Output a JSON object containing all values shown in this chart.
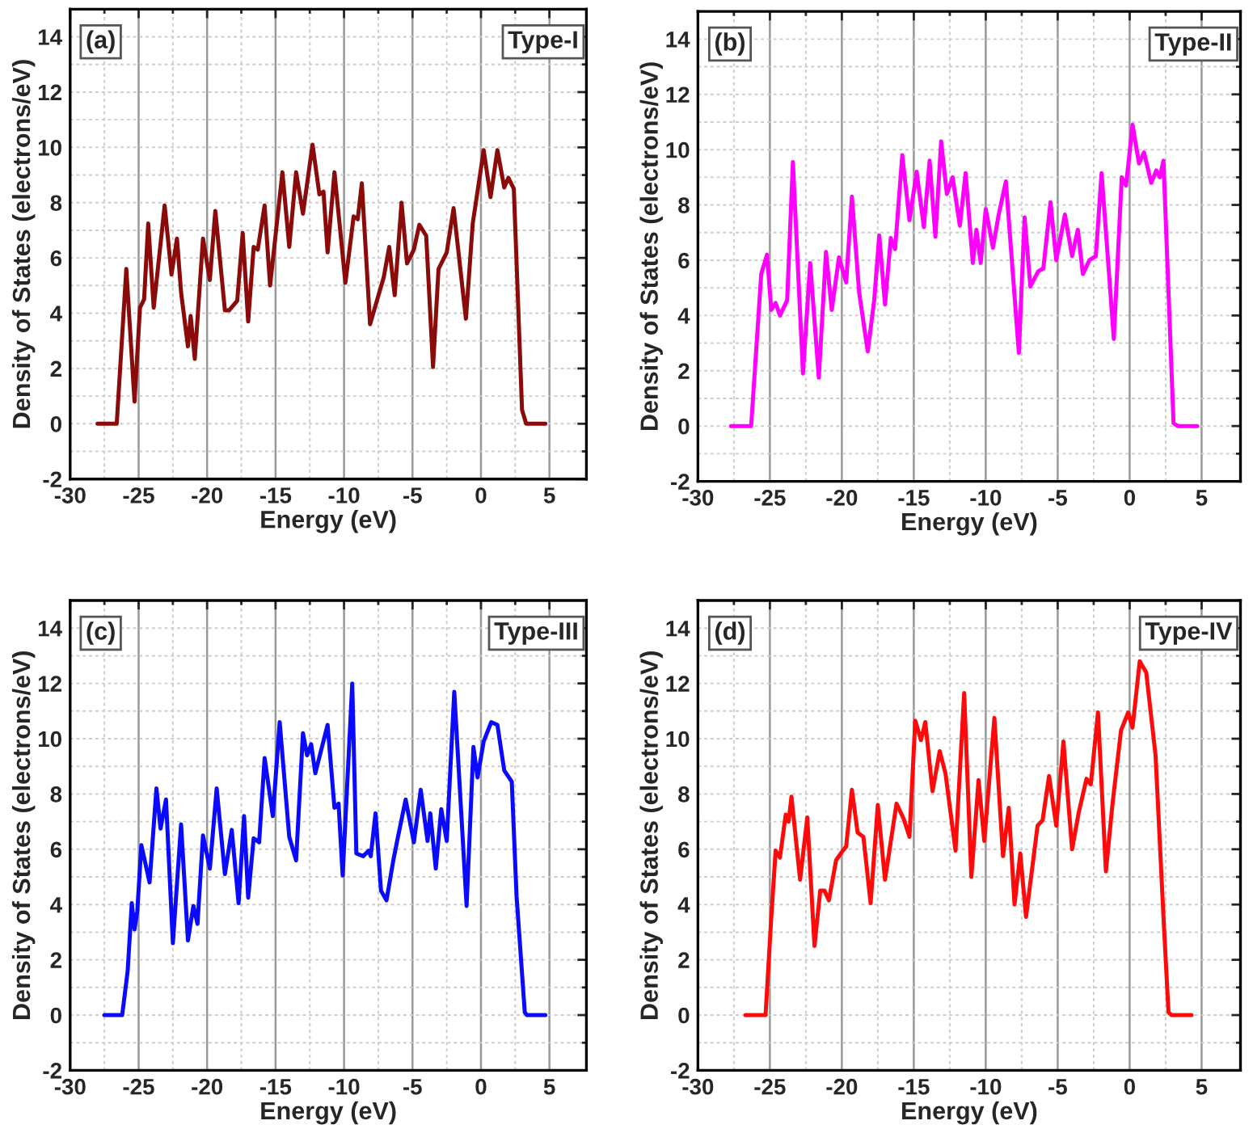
{
  "chart_data": [
    {
      "type": "line",
      "xlabel": "Energy (eV)",
      "ylabel": "Density of States (electrons/eV)",
      "annotations": [
        "(a)",
        "Type-I"
      ],
      "xlim": [
        -30,
        7.7
      ],
      "ylim": [
        -2,
        15
      ],
      "xticks": [
        -30,
        -25,
        -20,
        -15,
        -10,
        -5,
        0,
        5
      ],
      "yticks": [
        -2,
        0,
        2,
        4,
        6,
        8,
        10,
        12,
        14
      ],
      "grid": true,
      "marker": "none",
      "line_style": "solid",
      "series": [
        {
          "color": "#8b0a0a",
          "x": [
            -28,
            -26.6,
            -25.9,
            -25.3,
            -24.9,
            -24.6,
            -24.3,
            -23.9,
            -23.1,
            -22.6,
            -22.2,
            -21.9,
            -21.4,
            -21.2,
            -20.9,
            -20.3,
            -19.8,
            -19.4,
            -18.7,
            -18.4,
            -17.8,
            -17.4,
            -17.0,
            -16.6,
            -16.3,
            -15.8,
            -15.4,
            -14.5,
            -14.0,
            -13.5,
            -13.0,
            -12.3,
            -11.8,
            -11.5,
            -11.2,
            -10.7,
            -9.9,
            -9.3,
            -9.0,
            -8.7,
            -8.1,
            -7.1,
            -6.7,
            -6.3,
            -5.8,
            -5.4,
            -4.9,
            -4.5,
            -4.0,
            -3.5,
            -3.1,
            -2.5,
            -2.0,
            -1.1,
            -0.6,
            0.2,
            0.7,
            1.2,
            1.7,
            2.0,
            2.4,
            3.0,
            3.3,
            4.7
          ],
          "values": [
            0,
            0,
            5.6,
            0.8,
            4.2,
            4.5,
            7.25,
            4.2,
            7.9,
            5.4,
            6.7,
            4.75,
            2.8,
            3.9,
            2.35,
            6.7,
            5.2,
            7.7,
            4.1,
            4.1,
            4.45,
            6.9,
            3.7,
            6.4,
            6.3,
            7.9,
            5.0,
            9.1,
            6.4,
            9.1,
            7.6,
            10.1,
            8.3,
            8.4,
            6.2,
            9.1,
            5.1,
            7.5,
            7.4,
            8.7,
            3.6,
            5.3,
            6.4,
            4.65,
            8.0,
            5.8,
            6.3,
            7.2,
            6.8,
            2.05,
            5.6,
            6.2,
            7.8,
            3.8,
            7.25,
            9.9,
            8.2,
            9.9,
            8.55,
            8.9,
            8.5,
            0.5,
            0,
            0
          ]
        }
      ]
    },
    {
      "type": "line",
      "xlabel": "Energy (eV)",
      "ylabel": "Density of States (electrons/eV)",
      "annotations": [
        "(b)",
        "Type-II"
      ],
      "xlim": [
        -30,
        7.7
      ],
      "ylim": [
        -2,
        15
      ],
      "xticks": [
        -30,
        -25,
        -20,
        -15,
        -10,
        -5,
        0,
        5
      ],
      "yticks": [
        -2,
        0,
        2,
        4,
        6,
        8,
        10,
        12,
        14
      ],
      "grid": true,
      "marker": "none",
      "line_style": "solid",
      "series": [
        {
          "color": "#ff00ff",
          "x": [
            -27.7,
            -26.3,
            -25.6,
            -25.2,
            -24.9,
            -24.6,
            -24.3,
            -23.8,
            -23.4,
            -22.7,
            -22.2,
            -21.6,
            -21.1,
            -20.7,
            -20.2,
            -19.7,
            -19.3,
            -18.8,
            -18.2,
            -17.75,
            -17.4,
            -17.0,
            -16.6,
            -16.3,
            -15.8,
            -15.3,
            -14.8,
            -14.3,
            -13.9,
            -13.5,
            -13.1,
            -12.7,
            -12.3,
            -11.8,
            -11.4,
            -10.9,
            -10.65,
            -10.35,
            -10.0,
            -9.5,
            -9.1,
            -8.6,
            -7.7,
            -7.3,
            -6.9,
            -6.35,
            -6.0,
            -5.5,
            -5.1,
            -4.5,
            -4.0,
            -3.6,
            -3.25,
            -2.8,
            -2.35,
            -1.95,
            -1.1,
            -0.55,
            -0.25,
            0.2,
            0.65,
            1.0,
            1.5,
            1.85,
            2.1,
            2.35,
            3.05,
            3.35,
            4.7
          ],
          "values": [
            0,
            0,
            5.5,
            6.2,
            4.2,
            4.45,
            4.0,
            4.55,
            9.55,
            1.9,
            5.9,
            1.75,
            6.3,
            4.2,
            6.1,
            5.2,
            8.3,
            4.85,
            2.7,
            4.55,
            6.9,
            4.4,
            6.8,
            6.4,
            9.8,
            7.45,
            9.2,
            7.2,
            9.6,
            6.85,
            10.3,
            8.4,
            9.0,
            7.25,
            9.15,
            5.9,
            7.1,
            5.9,
            7.85,
            6.45,
            7.65,
            8.85,
            2.65,
            7.55,
            5.05,
            5.6,
            5.7,
            8.1,
            6.0,
            7.65,
            6.15,
            7.1,
            5.5,
            6.0,
            6.15,
            9.15,
            3.15,
            9.0,
            8.7,
            10.9,
            9.5,
            9.9,
            8.8,
            9.25,
            9.0,
            9.6,
            0.1,
            0,
            0
          ]
        }
      ]
    },
    {
      "type": "line",
      "xlabel": "Energy (eV)",
      "ylabel": "Density of States (electrons/eV)",
      "annotations": [
        "(c)",
        "Type-III"
      ],
      "xlim": [
        -30,
        7.7
      ],
      "ylim": [
        -2,
        15
      ],
      "xticks": [
        -30,
        -25,
        -20,
        -15,
        -10,
        -5,
        0,
        5
      ],
      "yticks": [
        -2,
        0,
        2,
        4,
        6,
        8,
        10,
        12,
        14
      ],
      "grid": true,
      "marker": "none",
      "line_style": "solid",
      "series": [
        {
          "color": "#0a0aff",
          "x": [
            -27.5,
            -26.2,
            -25.8,
            -25.5,
            -25.3,
            -25.1,
            -24.8,
            -24.2,
            -23.7,
            -23.4,
            -23.0,
            -22.5,
            -21.9,
            -21.4,
            -21.0,
            -20.7,
            -20.3,
            -19.8,
            -19.3,
            -18.7,
            -18.2,
            -17.7,
            -17.3,
            -17.0,
            -16.6,
            -16.2,
            -15.8,
            -15.2,
            -14.7,
            -14.0,
            -13.5,
            -13.0,
            -12.7,
            -12.4,
            -12.1,
            -11.2,
            -10.7,
            -10.4,
            -10.1,
            -9.4,
            -9.1,
            -8.6,
            -8.2,
            -8.05,
            -7.7,
            -7.3,
            -6.9,
            -6.4,
            -6.1,
            -5.5,
            -4.9,
            -4.4,
            -3.9,
            -3.7,
            -3.3,
            -2.9,
            -2.5,
            -1.95,
            -1.05,
            -0.55,
            -0.25,
            0.2,
            0.75,
            1.2,
            1.7,
            2.25,
            2.6,
            3.2,
            3.35,
            4.7
          ],
          "values": [
            0,
            0,
            1.6,
            4.05,
            3.1,
            3.75,
            6.15,
            4.8,
            8.2,
            6.75,
            7.8,
            2.6,
            6.9,
            2.7,
            3.95,
            3.3,
            6.5,
            5.3,
            8.2,
            5.1,
            6.7,
            4.05,
            7.2,
            4.25,
            6.4,
            6.25,
            9.3,
            7.2,
            10.6,
            6.45,
            5.6,
            10.2,
            9.4,
            9.8,
            8.75,
            10.5,
            7.5,
            7.65,
            5.05,
            12.0,
            5.85,
            5.75,
            5.95,
            5.75,
            7.3,
            4.5,
            4.15,
            5.6,
            6.35,
            7.8,
            6.25,
            8.15,
            6.3,
            7.3,
            5.3,
            7.45,
            6.3,
            11.7,
            3.95,
            9.7,
            8.6,
            9.9,
            10.6,
            10.5,
            8.85,
            8.45,
            4.3,
            0.1,
            0,
            0
          ]
        }
      ]
    },
    {
      "type": "line",
      "xlabel": "Energy (eV)",
      "ylabel": "Density of States (electrons/eV)",
      "annotations": [
        "(d)",
        "Type-IV"
      ],
      "xlim": [
        -30,
        7.7
      ],
      "ylim": [
        -2,
        15
      ],
      "xticks": [
        -30,
        -25,
        -20,
        -15,
        -10,
        -5,
        0,
        5
      ],
      "yticks": [
        -2,
        0,
        2,
        4,
        6,
        8,
        10,
        12,
        14
      ],
      "grid": true,
      "marker": "none",
      "line_style": "solid",
      "series": [
        {
          "color": "#ff0a0a",
          "x": [
            -26.7,
            -25.3,
            -24.9,
            -24.6,
            -24.3,
            -23.9,
            -23.7,
            -23.5,
            -22.9,
            -22.4,
            -21.9,
            -21.5,
            -21.2,
            -20.9,
            -20.4,
            -20.0,
            -19.7,
            -19.3,
            -18.9,
            -18.5,
            -18.0,
            -17.5,
            -17.0,
            -16.2,
            -15.7,
            -15.3,
            -14.9,
            -14.5,
            -14.2,
            -13.7,
            -13.2,
            -12.8,
            -12.1,
            -11.5,
            -11.0,
            -10.5,
            -10.1,
            -9.4,
            -8.8,
            -8.4,
            -8.0,
            -7.6,
            -7.2,
            -6.4,
            -6.05,
            -5.6,
            -5.1,
            -4.6,
            -4.0,
            -3.55,
            -3.0,
            -2.7,
            -2.2,
            -1.65,
            -1.2,
            -0.6,
            -0.1,
            0.2,
            0.7,
            1.15,
            1.8,
            2.35,
            2.7,
            2.9,
            4.3
          ],
          "values": [
            0,
            0,
            3.55,
            5.95,
            5.7,
            7.25,
            7.0,
            7.9,
            4.9,
            7.15,
            2.5,
            4.5,
            4.5,
            4.15,
            5.6,
            5.9,
            6.1,
            8.15,
            6.6,
            6.45,
            4.05,
            7.6,
            4.9,
            7.65,
            7.1,
            6.45,
            10.65,
            9.95,
            10.6,
            8.1,
            9.55,
            8.75,
            5.95,
            11.65,
            5.0,
            8.5,
            6.3,
            10.75,
            5.75,
            7.5,
            4.0,
            5.85,
            3.55,
            6.85,
            7.05,
            8.65,
            6.85,
            9.9,
            6.0,
            7.3,
            8.55,
            8.35,
            10.95,
            5.2,
            7.6,
            10.3,
            10.95,
            10.4,
            12.8,
            12.4,
            9.4,
            3.55,
            0.1,
            0,
            0
          ]
        }
      ]
    }
  ]
}
